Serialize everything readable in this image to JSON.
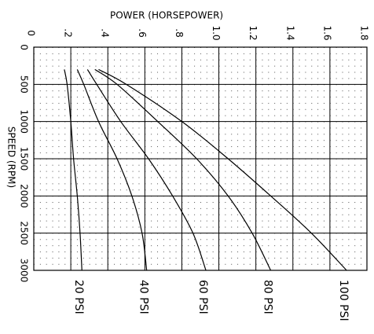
{
  "chart_data": {
    "type": "line",
    "xlabel": "SPEED (RPM)",
    "ylabel": "POWER (HORSEPOWER)",
    "x": [
      300,
      500,
      1000,
      1500,
      2000,
      2500,
      3000
    ],
    "series": [
      {
        "name": "20 PSI",
        "color": "#000000",
        "values": [
          0.165,
          0.18,
          0.2,
          0.215,
          0.235,
          0.25,
          0.26
        ]
      },
      {
        "name": "40 PSI",
        "color": "#000000",
        "values": [
          0.235,
          0.27,
          0.35,
          0.45,
          0.53,
          0.585,
          0.61
        ]
      },
      {
        "name": "60 PSI",
        "color": "#000000",
        "values": [
          0.29,
          0.34,
          0.47,
          0.62,
          0.75,
          0.86,
          0.93
        ]
      },
      {
        "name": "80 PSI",
        "color": "#000000",
        "values": [
          0.33,
          0.45,
          0.67,
          0.88,
          1.05,
          1.18,
          1.28
        ]
      },
      {
        "name": "100 PSI",
        "color": "#000000",
        "values": [
          0.35,
          0.5,
          0.8,
          1.05,
          1.28,
          1.5,
          1.69
        ]
      }
    ],
    "xlim": [
      0,
      3000
    ],
    "xticks": [
      0,
      500,
      1000,
      1500,
      2000,
      2500,
      3000
    ],
    "ylim": [
      0,
      1.8
    ],
    "yticks": [
      0,
      {
        "value": 0.2,
        "label": ".2"
      },
      {
        "value": 0.4,
        "label": ".4"
      },
      {
        "value": 0.6,
        "label": ".6"
      },
      {
        "value": 0.8,
        "label": ".8"
      },
      {
        "value": 1.0,
        "label": "1.0"
      },
      {
        "value": 1.2,
        "label": "1.2"
      },
      {
        "value": 1.4,
        "label": "1.4"
      },
      {
        "value": 1.6,
        "label": "1.6"
      },
      {
        "value": 1.8,
        "label": "1.8"
      }
    ],
    "grid": true
  }
}
